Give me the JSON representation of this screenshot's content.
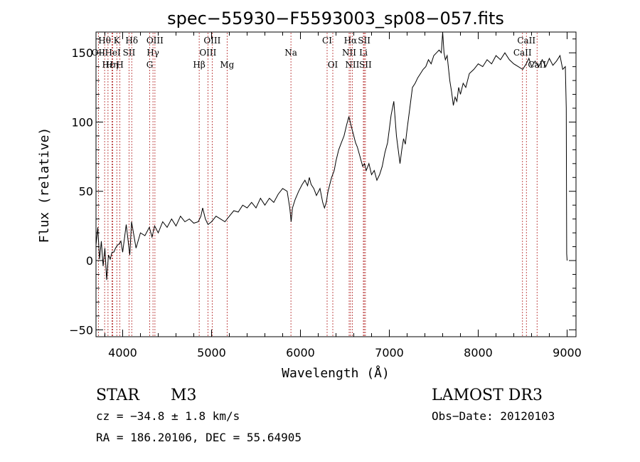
{
  "chart_data": {
    "type": "line",
    "title": "spec−55930−F5593003_sp08−057.fits",
    "xlabel": "Wavelength (Å)",
    "ylabel": "Flux (relative)",
    "xlim": [
      3700,
      9100
    ],
    "ylim": [
      -55,
      165
    ],
    "x_ticks": [
      4000,
      5000,
      6000,
      7000,
      8000,
      9000
    ],
    "x_tick_labels": [
      "4000",
      "5000",
      "6000",
      "7000",
      "8000",
      "9000"
    ],
    "y_ticks": [
      -50,
      0,
      50,
      100,
      150
    ],
    "y_tick_labels": [
      "−50",
      "0",
      "50",
      "100",
      "150"
    ],
    "line_color": "#000000",
    "marker_color": "#b22222",
    "series": [
      {
        "name": "flux",
        "points": [
          [
            3700,
            5
          ],
          [
            3720,
            30
          ],
          [
            3740,
            -5
          ],
          [
            3760,
            20
          ],
          [
            3780,
            -10
          ],
          [
            3800,
            15
          ],
          [
            3820,
            -20
          ],
          [
            3840,
            10
          ],
          [
            3860,
            -5
          ],
          [
            3880,
            12
          ],
          [
            3900,
            0
          ],
          [
            3920,
            15
          ],
          [
            3940,
            5
          ],
          [
            3960,
            18
          ],
          [
            3980,
            8
          ],
          [
            4000,
            12
          ],
          [
            4040,
            20
          ],
          [
            4080,
            10
          ],
          [
            4100,
            22
          ],
          [
            4150,
            15
          ],
          [
            4200,
            20
          ],
          [
            4250,
            18
          ],
          [
            4300,
            24
          ],
          [
            4330,
            17
          ],
          [
            4360,
            25
          ],
          [
            4400,
            20
          ],
          [
            4450,
            28
          ],
          [
            4500,
            24
          ],
          [
            4550,
            30
          ],
          [
            4600,
            25
          ],
          [
            4650,
            32
          ],
          [
            4700,
            28
          ],
          [
            4750,
            30
          ],
          [
            4800,
            27
          ],
          [
            4850,
            28
          ],
          [
            4880,
            32
          ],
          [
            4900,
            38
          ],
          [
            4930,
            30
          ],
          [
            4960,
            26
          ],
          [
            5000,
            28
          ],
          [
            5050,
            32
          ],
          [
            5100,
            30
          ],
          [
            5150,
            28
          ],
          [
            5200,
            32
          ],
          [
            5250,
            36
          ],
          [
            5300,
            35
          ],
          [
            5350,
            40
          ],
          [
            5400,
            38
          ],
          [
            5450,
            42
          ],
          [
            5500,
            38
          ],
          [
            5550,
            45
          ],
          [
            5600,
            40
          ],
          [
            5650,
            45
          ],
          [
            5700,
            42
          ],
          [
            5750,
            48
          ],
          [
            5800,
            52
          ],
          [
            5850,
            50
          ],
          [
            5880,
            38
          ],
          [
            5895,
            28
          ],
          [
            5910,
            38
          ],
          [
            5940,
            44
          ],
          [
            5980,
            50
          ],
          [
            6020,
            55
          ],
          [
            6050,
            58
          ],
          [
            6080,
            54
          ],
          [
            6100,
            60
          ],
          [
            6120,
            55
          ],
          [
            6150,
            52
          ],
          [
            6180,
            47
          ],
          [
            6220,
            52
          ],
          [
            6250,
            42
          ],
          [
            6270,
            38
          ],
          [
            6290,
            42
          ],
          [
            6310,
            50
          ],
          [
            6330,
            55
          ],
          [
            6350,
            60
          ],
          [
            6380,
            65
          ],
          [
            6400,
            72
          ],
          [
            6430,
            80
          ],
          [
            6460,
            85
          ],
          [
            6490,
            90
          ],
          [
            6520,
            98
          ],
          [
            6545,
            104
          ],
          [
            6560,
            100
          ],
          [
            6580,
            95
          ],
          [
            6600,
            90
          ],
          [
            6620,
            85
          ],
          [
            6640,
            82
          ],
          [
            6670,
            75
          ],
          [
            6700,
            68
          ],
          [
            6720,
            70
          ],
          [
            6740,
            65
          ],
          [
            6770,
            70
          ],
          [
            6800,
            62
          ],
          [
            6830,
            65
          ],
          [
            6860,
            58
          ],
          [
            6890,
            62
          ],
          [
            6920,
            68
          ],
          [
            6950,
            78
          ],
          [
            6980,
            85
          ],
          [
            7000,
            95
          ],
          [
            7020,
            105
          ],
          [
            7050,
            115
          ],
          [
            7080,
            90
          ],
          [
            7100,
            80
          ],
          [
            7120,
            70
          ],
          [
            7140,
            80
          ],
          [
            7160,
            88
          ],
          [
            7180,
            84
          ],
          [
            7200,
            95
          ],
          [
            7230,
            110
          ],
          [
            7260,
            125
          ],
          [
            7290,
            128
          ],
          [
            7320,
            132
          ],
          [
            7350,
            135
          ],
          [
            7380,
            138
          ],
          [
            7410,
            140
          ],
          [
            7440,
            145
          ],
          [
            7470,
            142
          ],
          [
            7500,
            148
          ],
          [
            7530,
            150
          ],
          [
            7560,
            152
          ],
          [
            7585,
            150
          ],
          [
            7600,
            165
          ],
          [
            7615,
            150
          ],
          [
            7630,
            145
          ],
          [
            7650,
            148
          ],
          [
            7680,
            130
          ],
          [
            7700,
            122
          ],
          [
            7720,
            112
          ],
          [
            7740,
            118
          ],
          [
            7760,
            115
          ],
          [
            7780,
            125
          ],
          [
            7800,
            120
          ],
          [
            7830,
            128
          ],
          [
            7860,
            125
          ],
          [
            7900,
            135
          ],
          [
            7950,
            138
          ],
          [
            8000,
            142
          ],
          [
            8050,
            140
          ],
          [
            8100,
            145
          ],
          [
            8150,
            142
          ],
          [
            8200,
            148
          ],
          [
            8250,
            145
          ],
          [
            8300,
            150
          ],
          [
            8350,
            145
          ],
          [
            8400,
            142
          ],
          [
            8450,
            140
          ],
          [
            8500,
            138
          ],
          [
            8540,
            142
          ],
          [
            8570,
            146
          ],
          [
            8600,
            140
          ],
          [
            8640,
            144
          ],
          [
            8680,
            140
          ],
          [
            8720,
            145
          ],
          [
            8760,
            140
          ],
          [
            8800,
            146
          ],
          [
            8840,
            141
          ],
          [
            8880,
            144
          ],
          [
            8920,
            148
          ],
          [
            8950,
            138
          ],
          [
            8980,
            140
          ],
          [
            8990,
            110
          ],
          [
            8995,
            5
          ],
          [
            9000,
            0
          ]
        ]
      }
    ],
    "spectral_lines": [
      {
        "label": "Hθ",
        "wavelength": 3797,
        "row": 1
      },
      {
        "label": "K",
        "wavelength": 3934,
        "row": 1
      },
      {
        "label": "Hδ",
        "wavelength": 4102,
        "row": 1
      },
      {
        "label": "OIII",
        "wavelength": 4363,
        "row": 1
      },
      {
        "label": "OIII",
        "wavelength": 5007,
        "row": 1
      },
      {
        "label": "CI",
        "wavelength": 6300,
        "row": 1
      },
      {
        "label": "Hα",
        "wavelength": 6563,
        "row": 1
      },
      {
        "label": "SII",
        "wavelength": 6717,
        "row": 1
      },
      {
        "label": "CaII",
        "wavelength": 8542,
        "row": 1
      },
      {
        "label": "OII",
        "wavelength": 3727,
        "row": 2
      },
      {
        "label": "HeI",
        "wavelength": 3889,
        "row": 2
      },
      {
        "label": "SII",
        "wavelength": 4072,
        "row": 2
      },
      {
        "label": "Hγ",
        "wavelength": 4341,
        "row": 2
      },
      {
        "label": "OIII",
        "wavelength": 4959,
        "row": 2
      },
      {
        "label": "Na",
        "wavelength": 5893,
        "row": 2
      },
      {
        "label": "NII",
        "wavelength": 6548,
        "row": 2
      },
      {
        "label": "Li",
        "wavelength": 6708,
        "row": 2
      },
      {
        "label": "CaII",
        "wavelength": 8498,
        "row": 2
      },
      {
        "label": "Hε",
        "wavelength": 3835,
        "row": 3
      },
      {
        "label": "Hη",
        "wavelength": 3880,
        "row": 3
      },
      {
        "label": "H",
        "wavelength": 3969,
        "row": 3
      },
      {
        "label": "G",
        "wavelength": 4304,
        "row": 3
      },
      {
        "label": "Hβ",
        "wavelength": 4861,
        "row": 3
      },
      {
        "label": "Mg",
        "wavelength": 5175,
        "row": 3
      },
      {
        "label": "OI",
        "wavelength": 6364,
        "row": 3
      },
      {
        "label": "NII",
        "wavelength": 6583,
        "row": 3
      },
      {
        "label": "SII",
        "wavelength": 6731,
        "row": 3
      },
      {
        "label": "CaII",
        "wavelength": 8662,
        "row": 3
      }
    ]
  },
  "info": {
    "object_class": "STAR",
    "subclass": "M3",
    "survey": "LAMOST DR3",
    "redshift_line": "cz = −34.8 ± 1.8 km/s",
    "obs_date_line": "Obs−Date: 20120103",
    "coords_line": "RA = 186.20106, DEC =  55.64905"
  }
}
